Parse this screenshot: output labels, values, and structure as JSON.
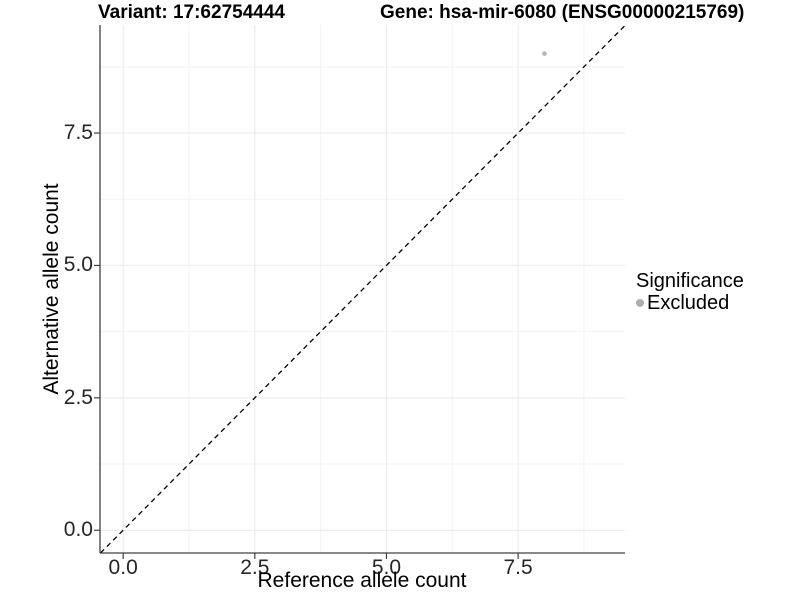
{
  "figure": {
    "title_left": "Variant: 17:62754444",
    "title_right": "Gene: hsa-mir-6080 (ENSG00000215769)"
  },
  "chart_data": {
    "type": "scatter",
    "title": "Variant: 17:62754444   Gene: hsa-mir-6080 (ENSG00000215769)",
    "xlabel": "Reference allele count",
    "ylabel": "Alternative allele count",
    "xlim": [
      -0.44,
      9.53
    ],
    "ylim": [
      -0.43,
      9.54
    ],
    "x_major_ticks": [
      0,
      2.5,
      5,
      7.5
    ],
    "x_tick_labels": [
      "0.0",
      "2.5",
      "5.0",
      "7.5"
    ],
    "y_major_ticks": [
      0,
      2.5,
      5,
      7.5
    ],
    "y_tick_labels": [
      "0.0",
      "2.5",
      "5.0",
      "7.5"
    ],
    "x_minor_ticks": [
      1.25,
      3.75,
      6.25,
      8.75
    ],
    "y_minor_ticks": [
      1.25,
      3.75,
      6.25,
      8.75
    ],
    "grid": true,
    "series": [
      {
        "name": "Excluded",
        "color": "#b8b8b8",
        "points": [
          {
            "x": 8,
            "y": 9
          }
        ]
      }
    ],
    "reference_line": {
      "type": "identity",
      "slope": 1,
      "intercept": 0,
      "style": "dashed",
      "color": "#000000"
    },
    "legend": {
      "title": "Significance",
      "position": "right",
      "items": [
        {
          "label": "Excluded",
          "color": "#aeaeae",
          "marker": "circle"
        }
      ]
    },
    "colors": {
      "background": "#ffffff",
      "grid_major": "#e9e9e9",
      "grid_minor": "#f3f3f3",
      "axis_line": "#404040",
      "tick_mark": "#404040",
      "tick_text": "#262626",
      "point": "#bfbfbf"
    }
  }
}
